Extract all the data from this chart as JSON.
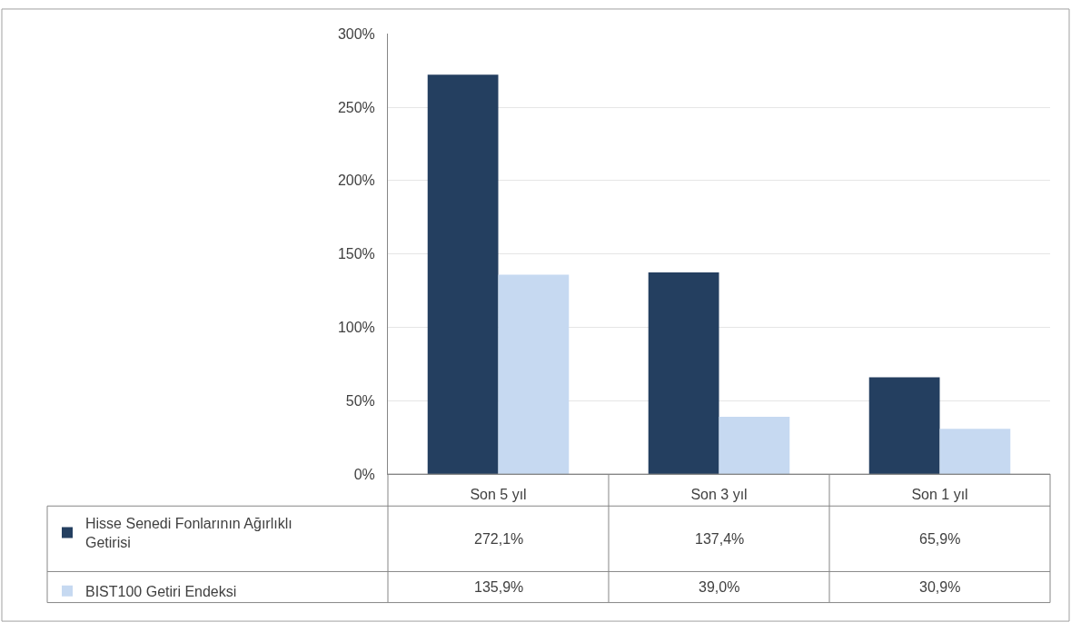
{
  "chart_data": {
    "type": "bar",
    "categories": [
      "Son 5 yıl",
      "Son 3 yıl",
      "Son 1 yıl"
    ],
    "series": [
      {
        "name": "Hisse Senedi Fonlarının Ağırlıklı Getirisi",
        "color": "#243f60",
        "values": [
          272.1,
          137.4,
          65.9
        ],
        "value_labels": [
          "272,1%",
          "137,4%",
          "65,9%"
        ]
      },
      {
        "name": "BIST100 Getiri Endeksi",
        "color": "#c6d9f1",
        "values": [
          135.9,
          39.0,
          30.9
        ],
        "value_labels": [
          "135,9%",
          "39,0%",
          "30,9%"
        ]
      }
    ],
    "ylim": [
      0,
      300
    ],
    "yticks": [
      {
        "value": 0,
        "label": "0%"
      },
      {
        "value": 50,
        "label": "50%"
      },
      {
        "value": 100,
        "label": "100%"
      },
      {
        "value": 150,
        "label": "150%"
      },
      {
        "value": 200,
        "label": "200%"
      },
      {
        "value": 250,
        "label": "250%"
      },
      {
        "value": 300,
        "label": "300%"
      }
    ],
    "grid": "y",
    "legend": "bottom left"
  }
}
